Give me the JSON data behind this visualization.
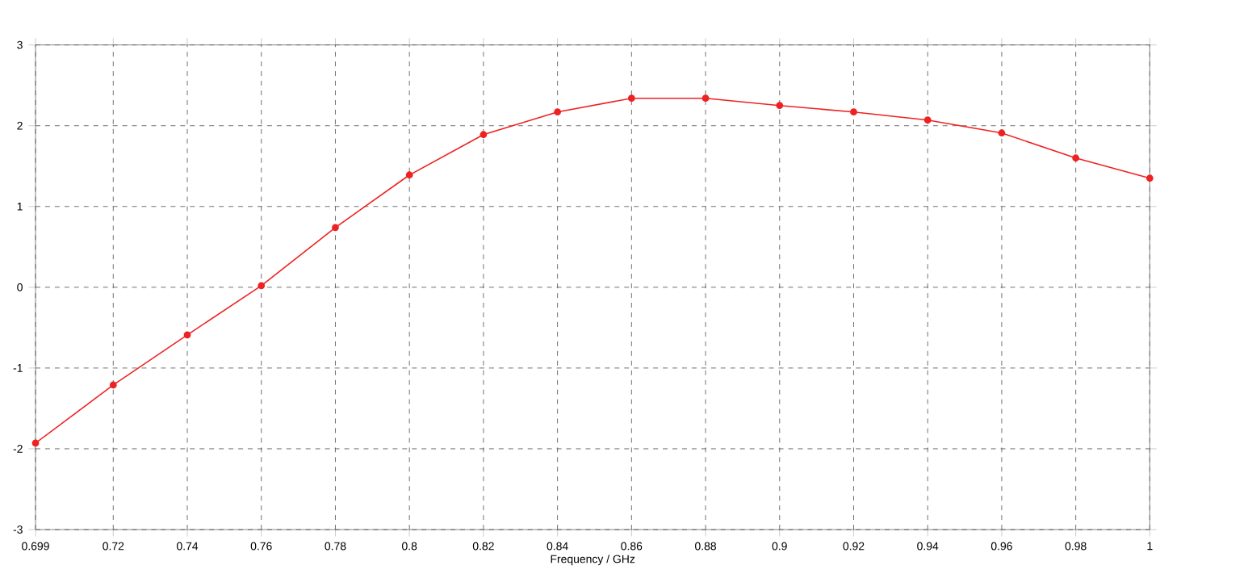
{
  "chart_data": {
    "type": "line",
    "xlabel": "Frequency / GHz",
    "x": [
      0.699,
      0.72,
      0.74,
      0.76,
      0.78,
      0.8,
      0.82,
      0.84,
      0.86,
      0.88,
      0.9,
      0.92,
      0.94,
      0.96,
      0.98,
      1.0
    ],
    "series": [
      {
        "color": "#ee2222",
        "values": [
          -1.93,
          -1.21,
          -0.59,
          0.02,
          0.74,
          1.39,
          1.89,
          2.17,
          2.34,
          2.34,
          2.25,
          2.17,
          2.07,
          1.91,
          1.6,
          1.35
        ]
      }
    ],
    "xlim": [
      0.699,
      1
    ],
    "xticks": [
      0.699,
      0.72,
      0.74,
      0.76,
      0.78,
      0.8,
      0.82,
      0.84,
      0.86,
      0.88,
      0.9,
      0.92,
      0.94,
      0.96,
      0.98,
      1
    ],
    "ylim": [
      -3,
      3
    ],
    "yticks": [
      -3,
      -2,
      -1,
      0,
      1,
      2,
      3
    ],
    "grid": true,
    "marker": "circle",
    "line_style": "solid"
  }
}
